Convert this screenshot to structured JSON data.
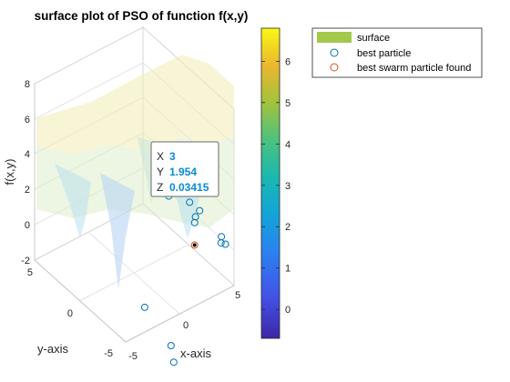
{
  "chart_data": {
    "type": "surface",
    "title": "surface plot of PSO of function f(x,y)",
    "xlabel": "x-axis",
    "ylabel": "y-axis",
    "zlabel": "f(x,y)",
    "xlim": [
      -5,
      5
    ],
    "ylim": [
      -5,
      5
    ],
    "zlim": [
      -2,
      8
    ],
    "x_ticks": [
      "-5",
      "0",
      "5"
    ],
    "y_ticks": [
      "-5",
      "0",
      "5"
    ],
    "z_ticks": [
      "-2",
      "0",
      "2",
      "4",
      "6",
      "8"
    ],
    "grid": true,
    "colorbar": {
      "range": [
        -0.7,
        6.8
      ],
      "ticks": [
        "0",
        "1",
        "2",
        "3",
        "4",
        "5",
        "6"
      ],
      "colormap": "parula"
    },
    "legend": {
      "position": "top-right",
      "entries": [
        {
          "label": "surface",
          "marker": "patch",
          "color": "#a3c94a"
        },
        {
          "label": "best particle",
          "marker": "o",
          "color": "#0072bd"
        },
        {
          "label": "best swarm particle found",
          "marker": "o",
          "color": "#d95319"
        }
      ]
    },
    "best_particles": [
      {
        "x": -4.5,
        "y": -1.5,
        "z": 0.5
      },
      {
        "x": -3.5,
        "y": -3.5,
        "z": -2.0
      },
      {
        "x": -3.5,
        "y": -3.2,
        "z": -1.2
      },
      {
        "x": 1.5,
        "y": 3.0,
        "z": 2.8
      },
      {
        "x": 3.0,
        "y": 2.5,
        "z": 2.2
      },
      {
        "x": 3.5,
        "y": 2.0,
        "z": 1.8
      },
      {
        "x": 3.2,
        "y": 2.1,
        "z": 1.5
      },
      {
        "x": 3.0,
        "y": 1.95,
        "z": 1.3
      },
      {
        "x": 3.8,
        "y": 0.0,
        "z": 0.8
      },
      {
        "x": 4.0,
        "y": 0.2,
        "z": 1.0
      },
      {
        "x": 4.2,
        "y": 0.0,
        "z": 0.6
      }
    ],
    "best_swarm_particle": {
      "x": 3,
      "y": 1.954,
      "z": 0.03415
    },
    "datatip": {
      "rows": [
        {
          "key": "X",
          "value": "3"
        },
        {
          "key": "Y",
          "value": "1.954"
        },
        {
          "key": "Z",
          "value": "0.03415"
        }
      ]
    }
  },
  "colors": {
    "box": "#c8c8c8",
    "axis_text": "#262626",
    "datatip_value": "#0b8bd6",
    "particle": "#0072bd",
    "swarm": "#d95319",
    "surface_patch": "#a3c94a"
  }
}
